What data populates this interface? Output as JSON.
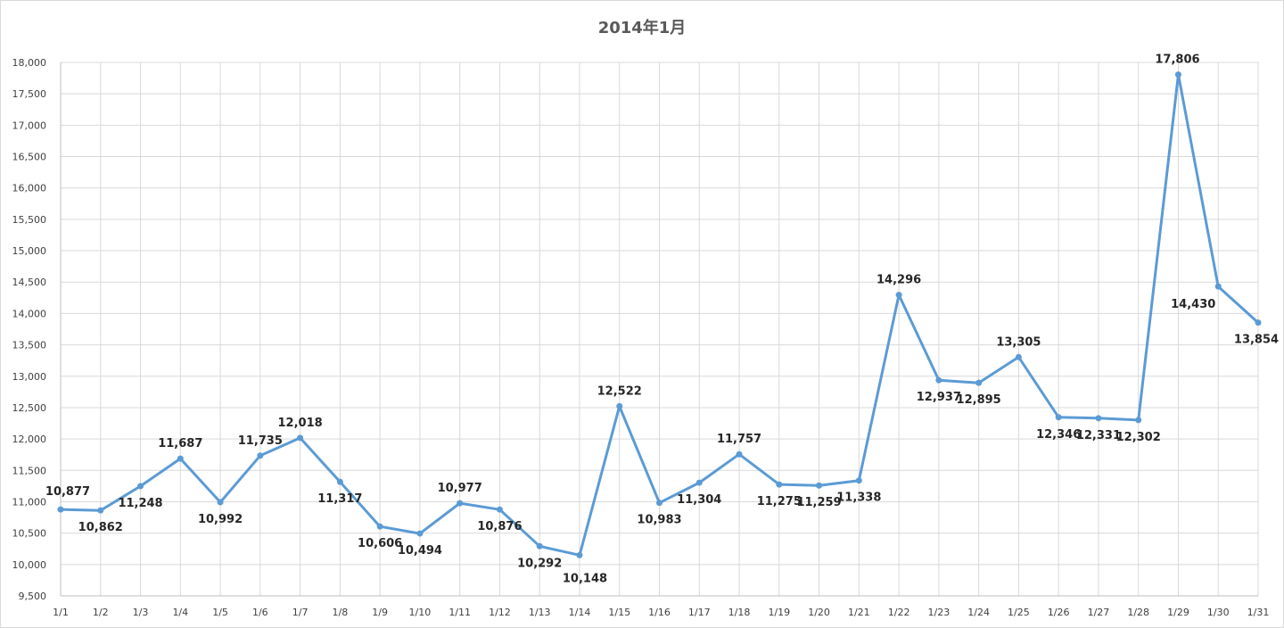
{
  "chart_data": {
    "type": "line",
    "title": "2014年1月",
    "categories": [
      "1/1",
      "1/2",
      "1/3",
      "1/4",
      "1/5",
      "1/6",
      "1/7",
      "1/8",
      "1/9",
      "1/10",
      "1/11",
      "1/12",
      "1/13",
      "1/14",
      "1/15",
      "1/16",
      "1/17",
      "1/18",
      "1/19",
      "1/20",
      "1/21",
      "1/22",
      "1/23",
      "1/24",
      "1/25",
      "1/26",
      "1/27",
      "1/28",
      "1/29",
      "1/30",
      "1/31"
    ],
    "series": [
      {
        "values": [
          10877,
          10862,
          11248,
          11687,
          10992,
          11735,
          12018,
          11317,
          10606,
          10494,
          10977,
          10876,
          10292,
          10148,
          12522,
          10983,
          11304,
          11757,
          11275,
          11259,
          11338,
          14296,
          12937,
          12895,
          13305,
          12346,
          12331,
          12302,
          17806,
          14430,
          13854
        ],
        "labels": [
          "10,877",
          "10,862",
          "11,248",
          "11,687",
          "10,992",
          "11,735",
          "12,018",
          "11,317",
          "10,606",
          "10,494",
          "10,977",
          "10,876",
          "10,292",
          "10,148",
          "12,522",
          "10,983",
          "11,304",
          "11,757",
          "11,275",
          "11,259",
          "11,338",
          "14,296",
          "12,937",
          "12,895",
          "13,305",
          "12,346",
          "12,331",
          "12,302",
          "17,806",
          "14,430",
          "13,854"
        ]
      }
    ],
    "ylim": [
      9500,
      18000
    ],
    "yticks": [
      "9,500",
      "10,000",
      "10,500",
      "11,000",
      "11,500",
      "12,000",
      "12,500",
      "13,000",
      "13,500",
      "14,000",
      "14,500",
      "15,000",
      "15,500",
      "16,000",
      "16,500",
      "17,000",
      "17,500",
      "18,000"
    ],
    "grid": true,
    "colors": {
      "line": "#5B9BD5",
      "grid": "#D9D9D9",
      "max_label": "#C00000",
      "min_label": "#7030A0"
    },
    "highlight": {
      "max_index": 28,
      "min_index": 13
    }
  }
}
